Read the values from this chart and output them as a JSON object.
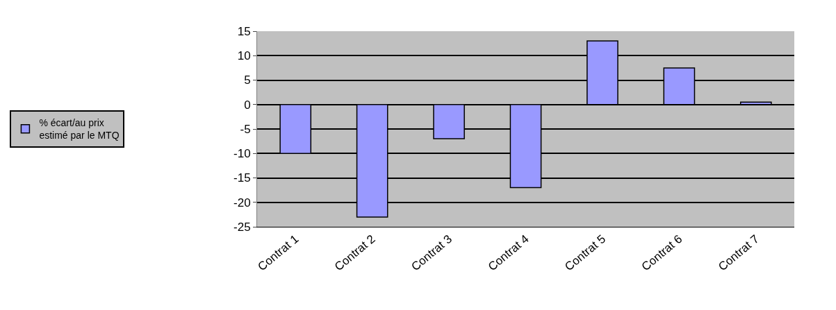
{
  "chart_data": {
    "type": "bar",
    "categories": [
      "Contrat 1",
      "Contrat 2",
      "Contrat 3",
      "Contrat 4",
      "Contrat 5",
      "Contrat 6",
      "Contrat 7"
    ],
    "series": [
      {
        "name": "% écart/au prix estimé par le MTQ",
        "color": "#9999ff",
        "values": [
          -10,
          -23,
          -7,
          -17,
          13,
          7.5,
          0.5
        ]
      }
    ],
    "ylim": [
      -25,
      15
    ],
    "yticks": [
      -25,
      -20,
      -15,
      -10,
      -5,
      0,
      5,
      10,
      15
    ],
    "grid": "y",
    "legend": "left"
  }
}
